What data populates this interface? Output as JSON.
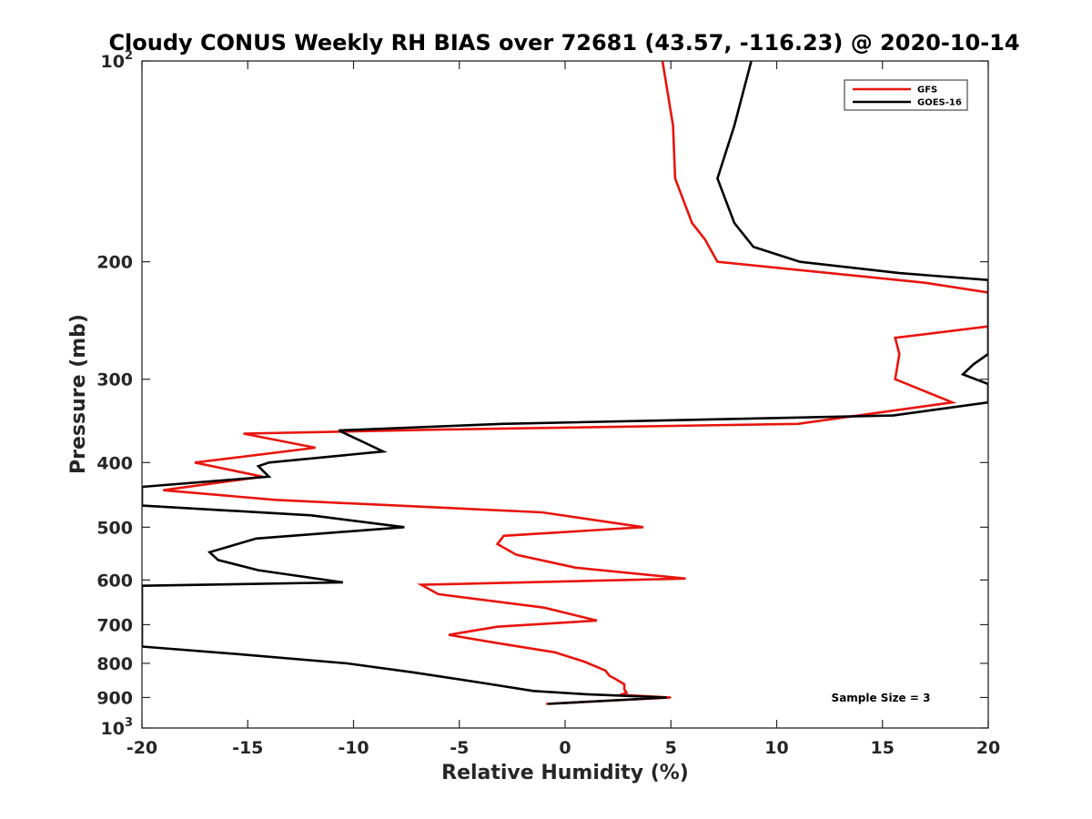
{
  "chart_data": {
    "type": "line",
    "title": "Cloudy CONUS Weekly RH BIAS over 72681 (43.57, -116.23) @ 2020-10-14",
    "xlabel": "Relative Humidity (%)",
    "ylabel": "Pressure (mb)",
    "xlim": [
      -20,
      20
    ],
    "ylim": [
      100,
      1000
    ],
    "y_scale": "log",
    "y_reversed": true,
    "grid": false,
    "legend_position": "top-right",
    "x_ticks": [
      "-20",
      "-15",
      "-10",
      "-5",
      "0",
      "5",
      "10",
      "15",
      "20"
    ],
    "y_ticks": [
      {
        "value": 100,
        "label": "10",
        "sup": "2"
      },
      {
        "value": 200,
        "label": "200"
      },
      {
        "value": 300,
        "label": "300"
      },
      {
        "value": 400,
        "label": "400"
      },
      {
        "value": 500,
        "label": "500"
      },
      {
        "value": 600,
        "label": "600"
      },
      {
        "value": 700,
        "label": "700"
      },
      {
        "value": 800,
        "label": "800"
      },
      {
        "value": 900,
        "label": "900"
      },
      {
        "value": 1000,
        "label": "10",
        "sup": "3"
      }
    ],
    "annotation": "Sample Size = 3",
    "series": [
      {
        "name": "GFS",
        "color": "#e8140c",
        "points": [
          [
            4.6,
            100
          ],
          [
            5.1,
            125
          ],
          [
            5.2,
            150
          ],
          [
            6.0,
            175
          ],
          [
            6.6,
            185
          ],
          [
            7.2,
            200
          ],
          [
            17,
            215
          ],
          [
            21,
            225
          ],
          [
            20,
            250
          ],
          [
            15.6,
            260
          ],
          [
            15.8,
            275
          ],
          [
            15.6,
            300
          ],
          [
            18.3,
            325
          ],
          [
            11.0,
            350
          ],
          [
            -6.0,
            357
          ],
          [
            -15.2,
            362
          ],
          [
            -11.8,
            380
          ],
          [
            -17.5,
            400
          ],
          [
            -14.3,
            420
          ],
          [
            -19.0,
            440
          ],
          [
            -13.7,
            455
          ],
          [
            -1.1,
            475
          ],
          [
            3.7,
            500
          ],
          [
            -2.9,
            515
          ],
          [
            -3.2,
            530
          ],
          [
            -2.3,
            550
          ],
          [
            0.5,
            575
          ],
          [
            5.7,
            597
          ],
          [
            -6.8,
            610
          ],
          [
            -6.0,
            630
          ],
          [
            -1.0,
            660
          ],
          [
            1.5,
            690
          ],
          [
            -3.2,
            705
          ],
          [
            -5.5,
            725
          ],
          [
            -3.3,
            745
          ],
          [
            -0.5,
            770
          ],
          [
            0.9,
            795
          ],
          [
            1.9,
            820
          ],
          [
            2.1,
            835
          ],
          [
            2.4,
            845
          ],
          [
            2.8,
            860
          ],
          [
            2.8,
            875
          ],
          [
            2.9,
            885
          ],
          [
            2.7,
            890
          ],
          [
            3.0,
            893
          ],
          [
            5.0,
            900
          ],
          [
            -0.9,
            920
          ]
        ]
      },
      {
        "name": "GOES-16",
        "color": "#000000",
        "points": [
          [
            8.8,
            100
          ],
          [
            8.0,
            125
          ],
          [
            7.2,
            150
          ],
          [
            8.0,
            175
          ],
          [
            8.9,
            190
          ],
          [
            11.1,
            200
          ],
          [
            15.8,
            208
          ],
          [
            20,
            213
          ],
          [
            20,
            275
          ],
          [
            19.3,
            285
          ],
          [
            18.8,
            295
          ],
          [
            20,
            305
          ],
          [
            20,
            325
          ],
          [
            15.5,
            340
          ],
          [
            -3.0,
            350
          ],
          [
            -10.7,
            358
          ],
          [
            -8.6,
            385
          ],
          [
            -14.0,
            400
          ],
          [
            -14.5,
            405
          ],
          [
            -14.0,
            420
          ],
          [
            -20,
            435
          ],
          [
            -20,
            464
          ],
          [
            -12.0,
            480
          ],
          [
            -7.6,
            500
          ],
          [
            -14.6,
            520
          ],
          [
            -16.8,
            545
          ],
          [
            -16.4,
            560
          ],
          [
            -14.5,
            580
          ],
          [
            -10.5,
            605
          ],
          [
            -20,
            612
          ],
          [
            -20,
            755
          ],
          [
            -15.4,
            775
          ],
          [
            -10.3,
            800
          ],
          [
            -7.2,
            825
          ],
          [
            -4.0,
            855
          ],
          [
            -1.5,
            880
          ],
          [
            1.0,
            890
          ],
          [
            4.8,
            900
          ],
          [
            -0.8,
            920
          ]
        ]
      }
    ]
  }
}
